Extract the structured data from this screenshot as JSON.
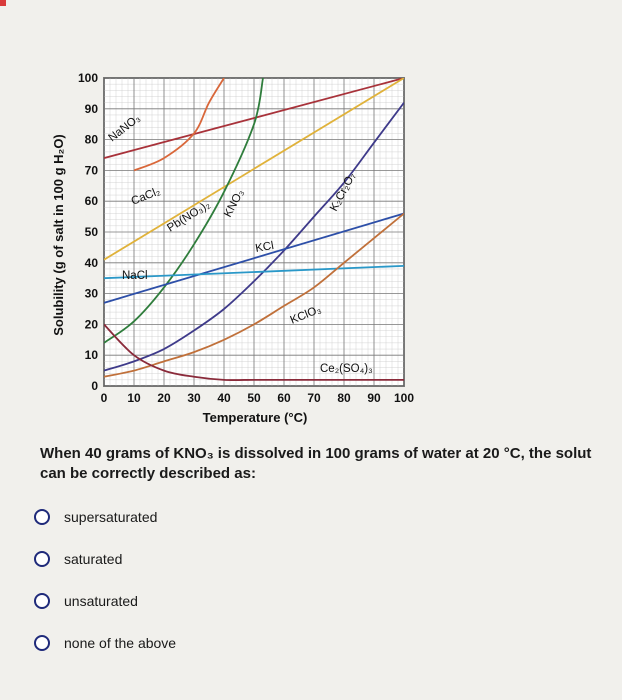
{
  "chart_data": {
    "type": "line",
    "xlabel": "Temperature (°C)",
    "ylabel": "Solubility (g of salt in 100 g H₂O)",
    "xlim": [
      0,
      100
    ],
    "ylim": [
      0,
      100
    ],
    "x_ticks": [
      0,
      10,
      20,
      30,
      40,
      50,
      60,
      70,
      80,
      90,
      100
    ],
    "y_ticks": [
      0,
      10,
      20,
      30,
      40,
      50,
      60,
      70,
      80,
      90,
      100
    ],
    "grid": true,
    "series": [
      {
        "name": "NaNO₃",
        "color": "#a8323a",
        "x": [
          0,
          100
        ],
        "y": [
          74,
          100
        ]
      },
      {
        "name": "CaCl₂",
        "color": "#d9673a",
        "x": [
          10,
          20,
          30,
          35,
          40
        ],
        "y": [
          70,
          74,
          82,
          92,
          100
        ]
      },
      {
        "name": "Pb(NO₃)₂",
        "color": "#e0b23a",
        "x": [
          0,
          100
        ],
        "y": [
          41,
          100
        ]
      },
      {
        "name": "KNO₃",
        "color": "#2f7d3c",
        "x": [
          0,
          10,
          20,
          30,
          40,
          50,
          53
        ],
        "y": [
          14,
          21,
          32,
          46,
          63,
          85,
          100
        ]
      },
      {
        "name": "K₂Cr₂O₇",
        "color": "#3e3a8a",
        "x": [
          0,
          10,
          20,
          30,
          40,
          50,
          60,
          70,
          80,
          90,
          100
        ],
        "y": [
          5,
          8,
          12,
          18,
          25,
          34,
          44,
          55,
          66,
          79,
          92
        ]
      },
      {
        "name": "KCl",
        "color": "#2d4fa8",
        "x": [
          0,
          100
        ],
        "y": [
          27,
          56
        ]
      },
      {
        "name": "NaCl",
        "color": "#2a98c8",
        "x": [
          0,
          100
        ],
        "y": [
          35,
          39
        ]
      },
      {
        "name": "KClO₃",
        "color": "#c0703a",
        "x": [
          0,
          10,
          20,
          30,
          40,
          50,
          60,
          70,
          80,
          90,
          100
        ],
        "y": [
          3,
          5,
          8,
          11,
          15,
          20,
          26,
          32,
          40,
          48,
          56
        ]
      },
      {
        "name": "Ce₂(SO₄)₃",
        "color": "#8a2a3a",
        "x": [
          0,
          10,
          20,
          30,
          40,
          50,
          60,
          70,
          80,
          90,
          100
        ],
        "y": [
          20,
          10,
          5,
          3,
          2,
          2,
          2,
          2,
          2,
          2,
          2
        ]
      }
    ]
  },
  "question": {
    "text": "When 40 grams of KNO₃ is dissolved in 100 grams of water at 20 °C, the solut can be correctly described as:"
  },
  "options": [
    {
      "label": "supersaturated"
    },
    {
      "label": "saturated"
    },
    {
      "label": "unsaturated"
    },
    {
      "label": "none of the above"
    }
  ]
}
